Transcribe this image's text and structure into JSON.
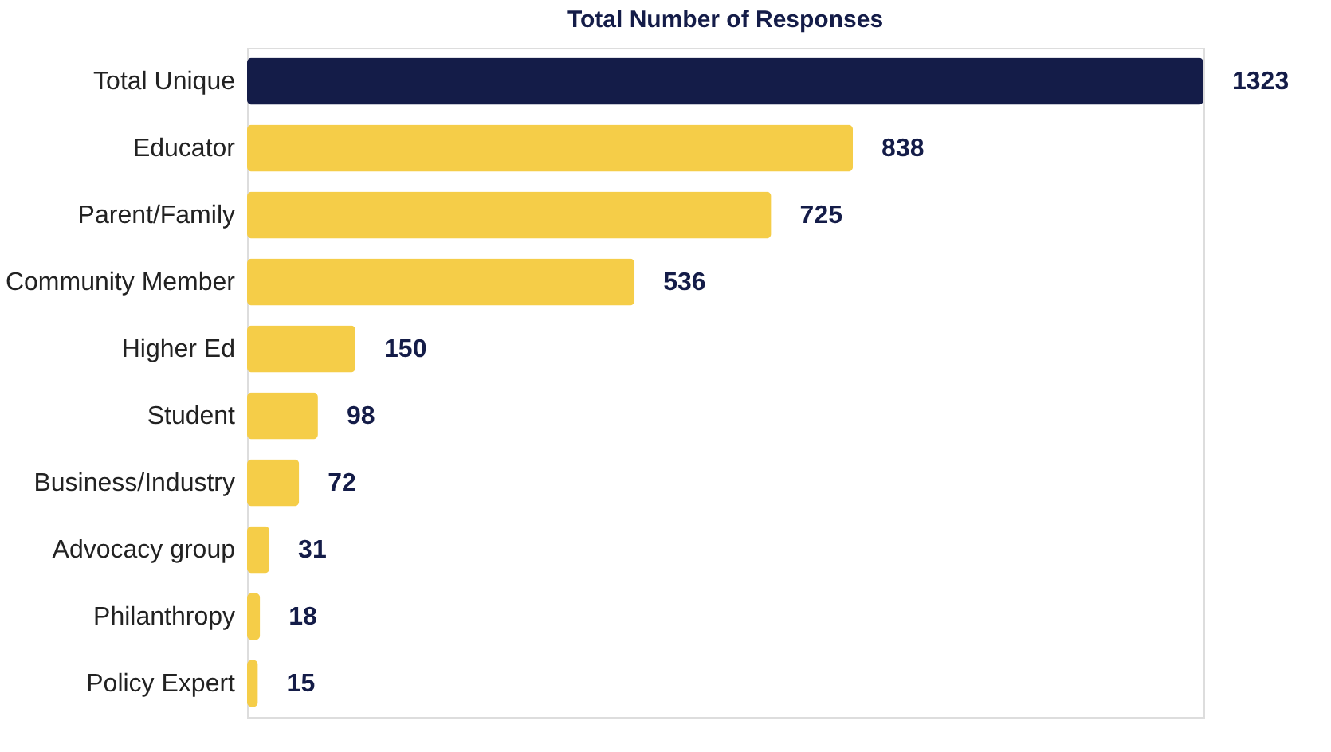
{
  "chart_data": {
    "type": "bar",
    "orientation": "horizontal",
    "title": "Total Number of Responses",
    "categories": [
      "Total Unique",
      "Educator",
      "Parent/Family",
      "Community Member",
      "Higher Ed",
      "Student",
      "Business/Industry",
      "Advocacy group",
      "Philanthropy",
      "Policy Expert"
    ],
    "values": [
      1323,
      838,
      725,
      536,
      150,
      98,
      72,
      31,
      18,
      15
    ],
    "colors": [
      "#141c48",
      "#f5cd48",
      "#f5cd48",
      "#f5cd48",
      "#f5cd48",
      "#f5cd48",
      "#f5cd48",
      "#f5cd48",
      "#f5cd48",
      "#f5cd48"
    ],
    "data_labels": true,
    "grid": false,
    "tick_labels": "y"
  }
}
